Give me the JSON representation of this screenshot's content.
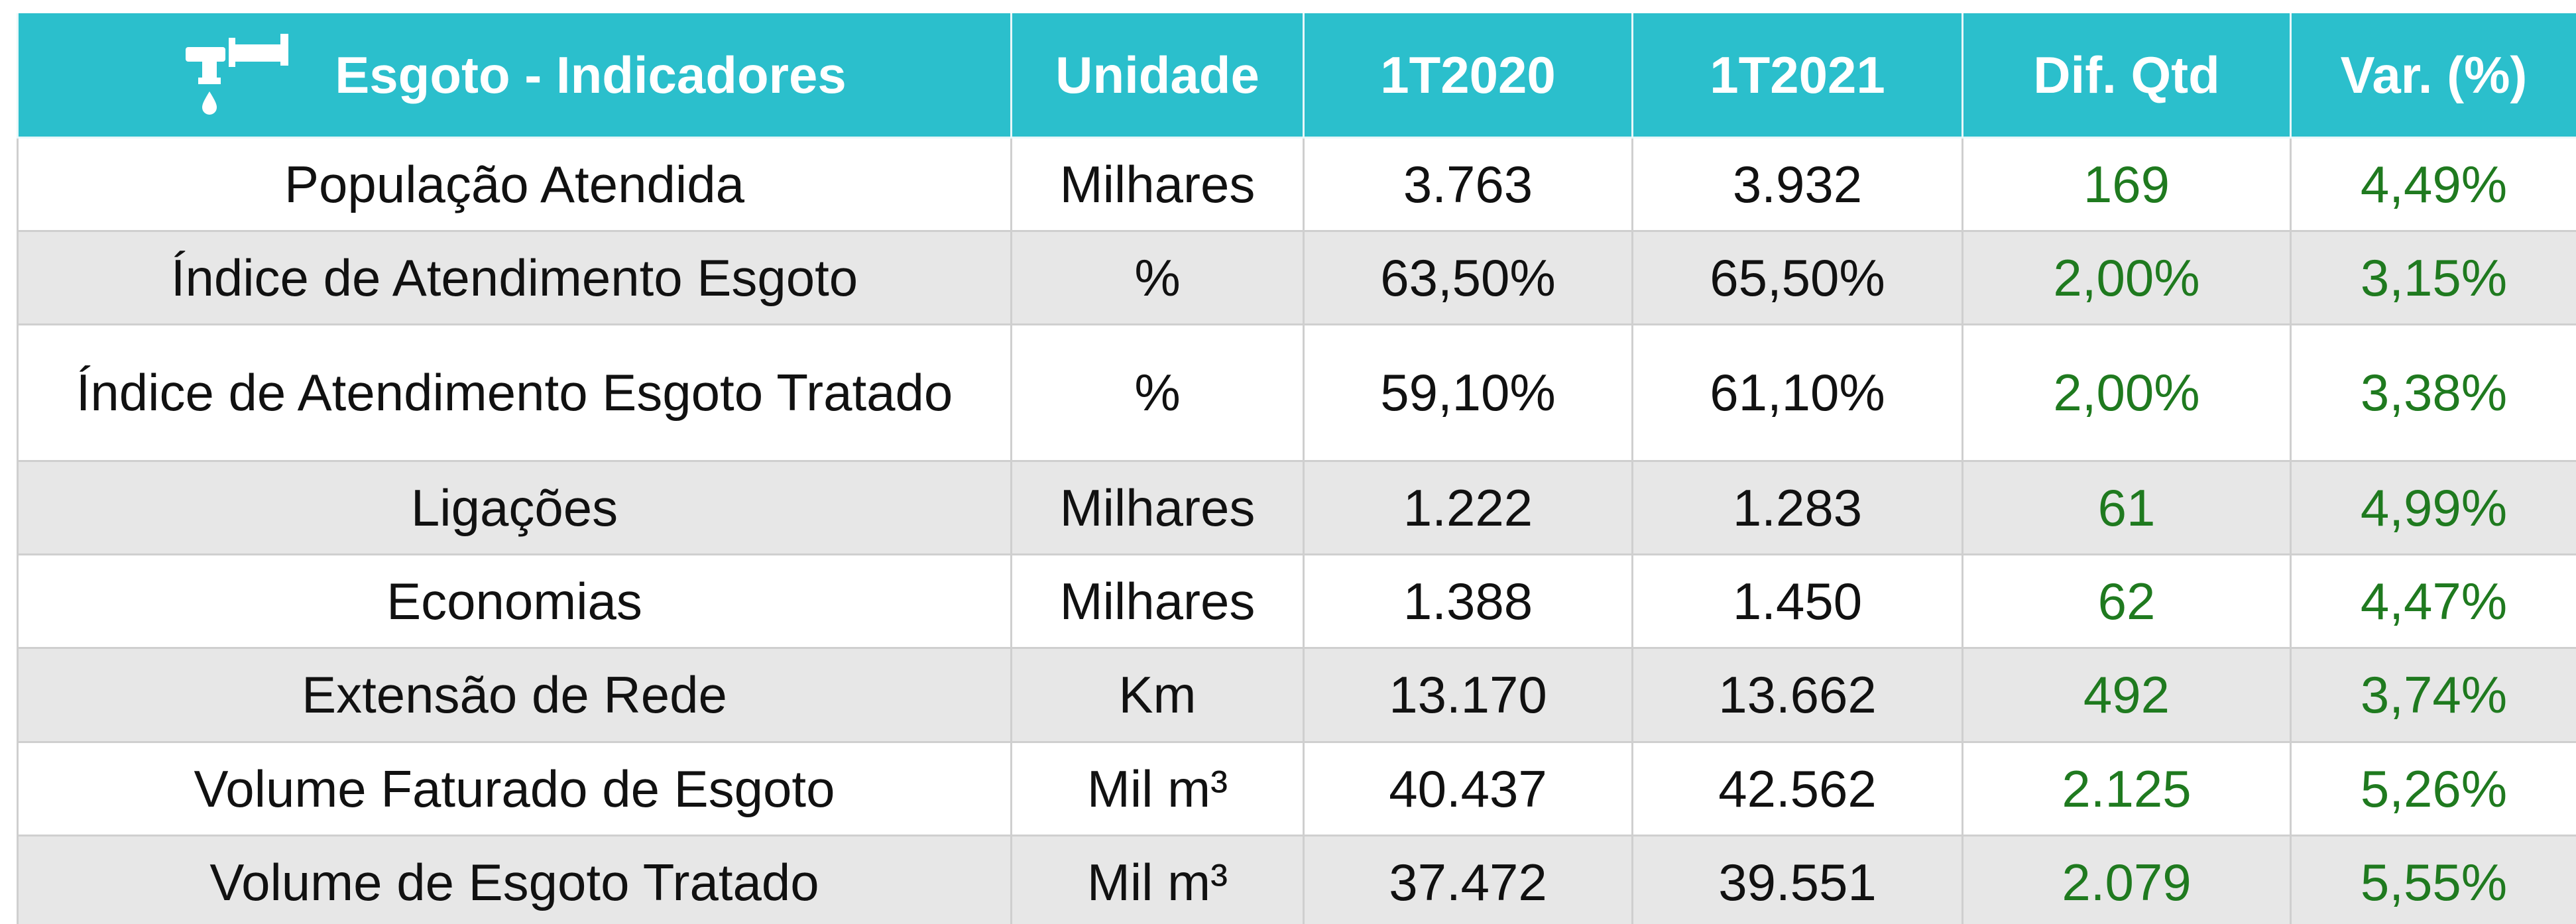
{
  "table": {
    "header": [
      "Esgoto - Indicadores",
      "Unidade",
      "1T2020",
      "1T2021",
      "Dif. Qtd",
      "Var. (%)"
    ],
    "rows": [
      [
        "População Atendida",
        "Milhares",
        "3.763",
        "3.932",
        "169",
        "4,49%"
      ],
      [
        "Índice de Atendimento Esgoto",
        "%",
        "63,50%",
        "65,50%",
        "2,00%",
        "3,15%"
      ],
      [
        "Índice de Atendimento Esgoto Tratado",
        "%",
        "59,10%",
        "61,10%",
        "2,00%",
        "3,38%"
      ],
      [
        "Ligações",
        "Milhares",
        "1.222",
        "1.283",
        "61",
        "4,99%"
      ],
      [
        "Economias",
        "Milhares",
        "1.388",
        "1.450",
        "62",
        "4,47%"
      ],
      [
        "Extensão de Rede",
        "Km",
        "13.170",
        "13.662",
        "492",
        "3,74%"
      ],
      [
        "Volume Faturado de Esgoto",
        "Mil m³",
        "40.437",
        "42.562",
        "2.125",
        "5,26%"
      ],
      [
        "Volume de Esgoto Tratado",
        "Mil m³",
        "37.472",
        "39.551",
        "2.079",
        "5,55%"
      ]
    ]
  }
}
